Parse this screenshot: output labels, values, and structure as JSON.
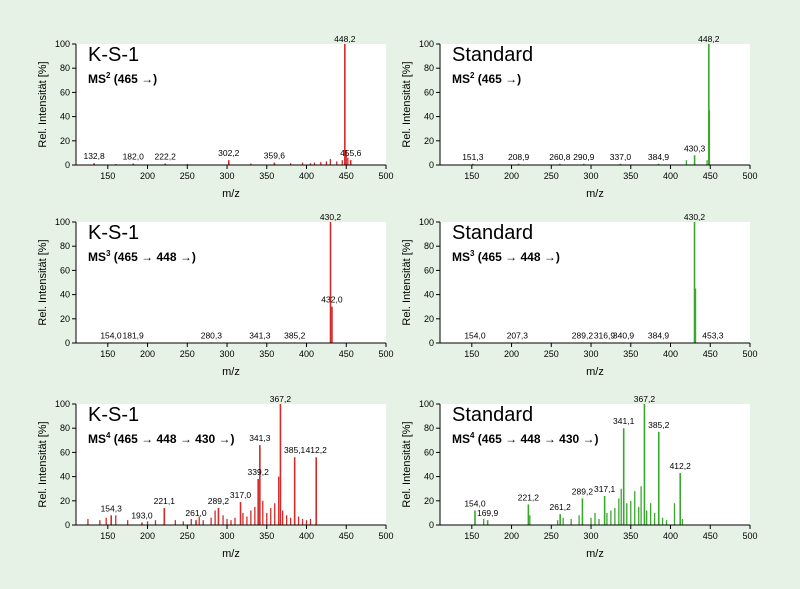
{
  "colors": {
    "background": "#e6f2e6",
    "red_series": "#d42a2a",
    "green_series": "#3aa72e"
  },
  "chart_data": [
    {
      "type": "bar",
      "title": "K-S-1",
      "scan_main": "MS",
      "scan_sup": "2",
      "scan_rest": " (465 →)",
      "xlabel": "m/z",
      "ylabel": "Rel. Intensität [%]",
      "xlim": [
        110,
        500
      ],
      "ylim": [
        0,
        100
      ],
      "xticks": [
        150,
        200,
        250,
        300,
        350,
        400,
        450,
        500
      ],
      "yticks": [
        0,
        20,
        40,
        60,
        80,
        100
      ],
      "color": "#d42a2a",
      "peaks": [
        {
          "x": 132.8,
          "y": 1.5,
          "label": "132,8"
        },
        {
          "x": 182.0,
          "y": 1.2,
          "label": "182,0"
        },
        {
          "x": 222.2,
          "y": 1.2,
          "label": "222,2"
        },
        {
          "x": 302.2,
          "y": 4,
          "label": "302,2"
        },
        {
          "x": 359.6,
          "y": 2,
          "label": "359,6"
        },
        {
          "x": 448.2,
          "y": 100,
          "label": "448,2"
        },
        {
          "x": 455.6,
          "y": 4,
          "label": "455,6"
        }
      ],
      "minor": [
        {
          "x": 160,
          "y": 0.8
        },
        {
          "x": 250,
          "y": 0.8
        },
        {
          "x": 330,
          "y": 1.2
        },
        {
          "x": 380,
          "y": 1.5
        },
        {
          "x": 395,
          "y": 2
        },
        {
          "x": 405,
          "y": 1.5
        },
        {
          "x": 410,
          "y": 2
        },
        {
          "x": 418,
          "y": 2.5
        },
        {
          "x": 425,
          "y": 3
        },
        {
          "x": 430,
          "y": 5
        },
        {
          "x": 438,
          "y": 3
        },
        {
          "x": 445,
          "y": 4
        },
        {
          "x": 450,
          "y": 12
        },
        {
          "x": 452,
          "y": 6
        }
      ]
    },
    {
      "type": "bar",
      "title": "Standard",
      "scan_main": "MS",
      "scan_sup": "2",
      "scan_rest": " (465 →)",
      "xlabel": "m/z",
      "ylabel": "Rel. Intensität [%]",
      "xlim": [
        110,
        500
      ],
      "ylim": [
        0,
        100
      ],
      "xticks": [
        150,
        200,
        250,
        300,
        350,
        400,
        450,
        500
      ],
      "yticks": [
        0,
        20,
        40,
        60,
        80,
        100
      ],
      "color": "#3aa72e",
      "peaks": [
        {
          "x": 151.3,
          "y": 1,
          "label": "151,3"
        },
        {
          "x": 208.9,
          "y": 1,
          "label": "208,9"
        },
        {
          "x": 260.8,
          "y": 1,
          "label": "260,8"
        },
        {
          "x": 290.9,
          "y": 1,
          "label": "290,9"
        },
        {
          "x": 337.0,
          "y": 1,
          "label": "337,0"
        },
        {
          "x": 384.9,
          "y": 1,
          "label": "384,9"
        },
        {
          "x": 430.3,
          "y": 8,
          "label": "430,3"
        },
        {
          "x": 448.2,
          "y": 100,
          "label": "448,2"
        }
      ],
      "minor": [
        {
          "x": 420,
          "y": 4
        },
        {
          "x": 446,
          "y": 4
        },
        {
          "x": 449,
          "y": 45
        }
      ]
    },
    {
      "type": "bar",
      "title": "K-S-1",
      "scan_main": "MS",
      "scan_sup": "3",
      "scan_rest": " (465 → 448 →)",
      "xlabel": "m/z",
      "ylabel": "Rel. Intensität [%]",
      "xlim": [
        110,
        500
      ],
      "ylim": [
        0,
        100
      ],
      "xticks": [
        150,
        200,
        250,
        300,
        350,
        400,
        450,
        500
      ],
      "yticks": [
        0,
        20,
        40,
        60,
        80,
        100
      ],
      "color": "#d42a2a",
      "peaks": [
        {
          "x": 154.0,
          "y": 0.5,
          "label": "154,0"
        },
        {
          "x": 181.9,
          "y": 0.5,
          "label": "181,9"
        },
        {
          "x": 280.3,
          "y": 0.5,
          "label": "280,3"
        },
        {
          "x": 341.3,
          "y": 0.5,
          "label": "341,3"
        },
        {
          "x": 385.2,
          "y": 0.5,
          "label": "385,2"
        },
        {
          "x": 430.2,
          "y": 100,
          "label": "430,2"
        },
        {
          "x": 432.0,
          "y": 30,
          "label": "432,0"
        }
      ],
      "minor": []
    },
    {
      "type": "bar",
      "title": "Standard",
      "scan_main": "MS",
      "scan_sup": "3",
      "scan_rest": " (465 → 448 →)",
      "xlabel": "m/z",
      "ylabel": "Rel. Intensität [%]",
      "xlim": [
        110,
        500
      ],
      "ylim": [
        0,
        100
      ],
      "xticks": [
        150,
        200,
        250,
        300,
        350,
        400,
        450,
        500
      ],
      "yticks": [
        0,
        20,
        40,
        60,
        80,
        100
      ],
      "color": "#3aa72e",
      "peaks": [
        {
          "x": 154.0,
          "y": 0.5,
          "label": "154,0"
        },
        {
          "x": 207.3,
          "y": 0.5,
          "label": "207,3"
        },
        {
          "x": 289.2,
          "y": 0.5,
          "label": "289,2"
        },
        {
          "x": 316.9,
          "y": 0.5,
          "label": "316,9"
        },
        {
          "x": 340.9,
          "y": 0.5,
          "label": "340,9"
        },
        {
          "x": 384.9,
          "y": 0.5,
          "label": "384,9"
        },
        {
          "x": 430.2,
          "y": 100,
          "label": "430,2"
        },
        {
          "x": 453.3,
          "y": 0.5,
          "label": "453,3"
        }
      ],
      "minor": [
        {
          "x": 431.5,
          "y": 45
        }
      ]
    },
    {
      "type": "bar",
      "title": "K-S-1",
      "scan_main": "MS",
      "scan_sup": "4",
      "scan_rest": " (465 → 448 → 430 →)",
      "xlabel": "m/z",
      "ylabel": "Rel. Intensität [%]",
      "xlim": [
        110,
        500
      ],
      "ylim": [
        0,
        100
      ],
      "xticks": [
        150,
        200,
        250,
        300,
        350,
        400,
        450,
        500
      ],
      "yticks": [
        0,
        20,
        40,
        60,
        80,
        100
      ],
      "color": "#d42a2a",
      "peaks": [
        {
          "x": 154.3,
          "y": 8,
          "label": "154,3"
        },
        {
          "x": 193.0,
          "y": 2,
          "label": "193,0"
        },
        {
          "x": 221.1,
          "y": 14,
          "label": "221,1"
        },
        {
          "x": 261.0,
          "y": 4,
          "label": "261,0"
        },
        {
          "x": 289.2,
          "y": 14,
          "label": "289,2"
        },
        {
          "x": 317.0,
          "y": 19,
          "label": "317,0"
        },
        {
          "x": 339.2,
          "y": 38,
          "label": "339,2"
        },
        {
          "x": 341.3,
          "y": 66,
          "label": "341,3"
        },
        {
          "x": 367.2,
          "y": 100,
          "label": "367,2"
        },
        {
          "x": 385.1,
          "y": 56,
          "label": "385,1"
        },
        {
          "x": 412.2,
          "y": 56,
          "label": "412,2"
        }
      ],
      "minor": [
        {
          "x": 125,
          "y": 5
        },
        {
          "x": 140,
          "y": 4
        },
        {
          "x": 148,
          "y": 6
        },
        {
          "x": 160,
          "y": 8
        },
        {
          "x": 175,
          "y": 4
        },
        {
          "x": 200,
          "y": 3
        },
        {
          "x": 210,
          "y": 4
        },
        {
          "x": 235,
          "y": 4
        },
        {
          "x": 245,
          "y": 3
        },
        {
          "x": 255,
          "y": 5
        },
        {
          "x": 265,
          "y": 7
        },
        {
          "x": 270,
          "y": 4
        },
        {
          "x": 280,
          "y": 6
        },
        {
          "x": 285,
          "y": 12
        },
        {
          "x": 295,
          "y": 8
        },
        {
          "x": 300,
          "y": 5
        },
        {
          "x": 305,
          "y": 4
        },
        {
          "x": 310,
          "y": 6
        },
        {
          "x": 320,
          "y": 10
        },
        {
          "x": 325,
          "y": 7
        },
        {
          "x": 330,
          "y": 12
        },
        {
          "x": 335,
          "y": 15
        },
        {
          "x": 345,
          "y": 20
        },
        {
          "x": 350,
          "y": 10
        },
        {
          "x": 355,
          "y": 14
        },
        {
          "x": 360,
          "y": 18
        },
        {
          "x": 365,
          "y": 40
        },
        {
          "x": 370,
          "y": 12
        },
        {
          "x": 375,
          "y": 8
        },
        {
          "x": 380,
          "y": 6
        },
        {
          "x": 390,
          "y": 7
        },
        {
          "x": 395,
          "y": 5
        },
        {
          "x": 400,
          "y": 4
        },
        {
          "x": 405,
          "y": 5
        }
      ]
    },
    {
      "type": "bar",
      "title": "Standard",
      "scan_main": "MS",
      "scan_sup": "4",
      "scan_rest": " (465 → 448 → 430 →)",
      "xlabel": "m/z",
      "ylabel": "Rel. Intensität [%]",
      "xlim": [
        110,
        500
      ],
      "ylim": [
        0,
        100
      ],
      "xticks": [
        150,
        200,
        250,
        300,
        350,
        400,
        450,
        500
      ],
      "yticks": [
        0,
        20,
        40,
        60,
        80,
        100
      ],
      "color": "#3aa72e",
      "peaks": [
        {
          "x": 154.0,
          "y": 12,
          "label": "154,0"
        },
        {
          "x": 169.9,
          "y": 4,
          "label": "169,9"
        },
        {
          "x": 221.2,
          "y": 17,
          "label": "221,2"
        },
        {
          "x": 261.2,
          "y": 9,
          "label": "261,2"
        },
        {
          "x": 289.2,
          "y": 22,
          "label": "289,2"
        },
        {
          "x": 317.1,
          "y": 24,
          "label": "317,1"
        },
        {
          "x": 341.1,
          "y": 80,
          "label": "341,1"
        },
        {
          "x": 367.2,
          "y": 100,
          "label": "367,2"
        },
        {
          "x": 385.2,
          "y": 77,
          "label": "385,2"
        },
        {
          "x": 412.2,
          "y": 43,
          "label": "412,2"
        }
      ],
      "minor": [
        {
          "x": 165,
          "y": 5
        },
        {
          "x": 223,
          "y": 8
        },
        {
          "x": 258,
          "y": 4
        },
        {
          "x": 265,
          "y": 6
        },
        {
          "x": 275,
          "y": 5
        },
        {
          "x": 285,
          "y": 8
        },
        {
          "x": 300,
          "y": 6
        },
        {
          "x": 305,
          "y": 10
        },
        {
          "x": 310,
          "y": 5
        },
        {
          "x": 320,
          "y": 10
        },
        {
          "x": 325,
          "y": 12
        },
        {
          "x": 330,
          "y": 14
        },
        {
          "x": 335,
          "y": 22
        },
        {
          "x": 338,
          "y": 30
        },
        {
          "x": 345,
          "y": 18
        },
        {
          "x": 350,
          "y": 20
        },
        {
          "x": 355,
          "y": 28
        },
        {
          "x": 360,
          "y": 15
        },
        {
          "x": 363,
          "y": 32
        },
        {
          "x": 370,
          "y": 12
        },
        {
          "x": 375,
          "y": 18
        },
        {
          "x": 380,
          "y": 10
        },
        {
          "x": 390,
          "y": 6
        },
        {
          "x": 395,
          "y": 4
        },
        {
          "x": 405,
          "y": 18
        },
        {
          "x": 415,
          "y": 5
        }
      ]
    }
  ]
}
